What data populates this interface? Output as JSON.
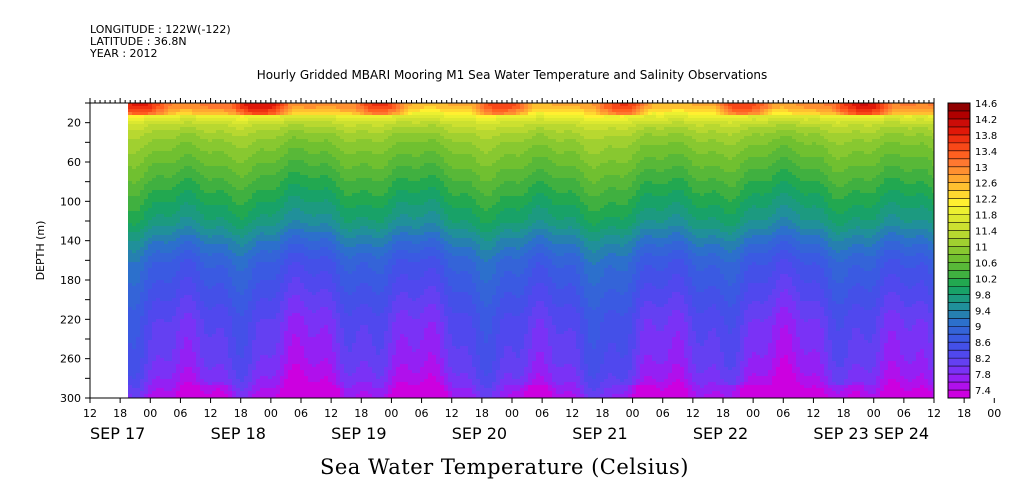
{
  "header": {
    "longitude": "LONGITUDE : 122W(-122)",
    "latitude": "LATITUDE : 36.8N",
    "year": "YEAR : 2012"
  },
  "chart_data": {
    "type": "heatmap",
    "title": "Hourly Gridded MBARI Mooring M1 Sea Water Temperature and Salinity Observations",
    "xlabel": "",
    "ylabel": "DEPTH (m)",
    "colorbar_label": "Sea Water Temperature (Celsius)",
    "x_range": [
      "SEP 17 12:00",
      "SEP 24 12:00"
    ],
    "data_start": "SEP 17 18:00",
    "x_hour_ticks": [
      "12",
      "18",
      "00",
      "06",
      "12",
      "18",
      "00",
      "06",
      "12",
      "18",
      "00",
      "06",
      "12",
      "18",
      "00",
      "06",
      "12",
      "18",
      "00",
      "06",
      "12",
      "18",
      "00",
      "06",
      "12",
      "18",
      "00",
      "06",
      "12",
      "18",
      "00",
      "06",
      "12",
      "18",
      "00",
      "06"
    ],
    "x_day_labels": [
      {
        "label": "SEP 17",
        "at": "SEP 17 12:00"
      },
      {
        "label": "SEP 18",
        "at": "SEP 18 12:00"
      },
      {
        "label": "SEP 19",
        "at": "SEP 19 12:00"
      },
      {
        "label": "SEP 20",
        "at": "SEP 20 12:00"
      },
      {
        "label": "SEP 21",
        "at": "SEP 21 12:00"
      },
      {
        "label": "SEP 22",
        "at": "SEP 22 12:00"
      },
      {
        "label": "SEP 23",
        "at": "SEP 23 12:00"
      },
      {
        "label": "SEP 24",
        "at": "SEP 24 00:00"
      }
    ],
    "y_range": [
      300,
      0
    ],
    "y_ticks": [
      20,
      60,
      100,
      140,
      180,
      220,
      260,
      300
    ],
    "colorbar": {
      "levels": [
        7.4,
        7.6,
        7.8,
        8,
        8.2,
        8.4,
        8.6,
        8.8,
        9,
        9.2,
        9.4,
        9.6,
        9.8,
        10,
        10.2,
        10.4,
        10.6,
        10.8,
        11,
        11.2,
        11.4,
        11.6,
        11.8,
        12,
        12.2,
        12.4,
        12.6,
        12.8,
        13,
        13.2,
        13.4,
        13.6,
        13.8,
        14,
        14.2,
        14.4,
        14.6,
        14.8
      ],
      "tick_labels": [
        "7.4",
        "7.8",
        "8.2",
        "8.6",
        "9",
        "9.4",
        "9.8",
        "10.2",
        "10.6",
        "11",
        "11.4",
        "11.8",
        "12.2",
        "12.6",
        "13",
        "13.4",
        "13.8",
        "14.2",
        "14.6"
      ],
      "colors": [
        "#cc00e0",
        "#b010ec",
        "#9420f4",
        "#7a32f6",
        "#6440f2",
        "#5048ee",
        "#4450e8",
        "#3a5ae2",
        "#3464d8",
        "#2c70cc",
        "#2680b0",
        "#20909a",
        "#1c9a80",
        "#18a268",
        "#22a850",
        "#40b040",
        "#58b838",
        "#70c030",
        "#88c830",
        "#a0d030",
        "#b8d830",
        "#cce030",
        "#dce830",
        "#ecf030",
        "#fff030",
        "#ffd830",
        "#ffc030",
        "#ffa830",
        "#ff9030",
        "#ff7830",
        "#ff6020",
        "#f84818",
        "#ee3010",
        "#e01808",
        "#cc0c08",
        "#b00000",
        "#900000"
      ]
    },
    "depth_profile": [
      {
        "depth": 2,
        "temp": 12.8
      },
      {
        "depth": 6,
        "temp": 12.5
      },
      {
        "depth": 10,
        "temp": 12.2
      },
      {
        "depth": 15,
        "temp": 11.9
      },
      {
        "depth": 20,
        "temp": 11.6
      },
      {
        "depth": 30,
        "temp": 11.3
      },
      {
        "depth": 40,
        "temp": 11.1
      },
      {
        "depth": 60,
        "temp": 10.8
      },
      {
        "depth": 80,
        "temp": 10.5
      },
      {
        "depth": 100,
        "temp": 10.2
      },
      {
        "depth": 120,
        "temp": 9.9
      },
      {
        "depth": 140,
        "temp": 9.4
      },
      {
        "depth": 160,
        "temp": 9.0
      },
      {
        "depth": 180,
        "temp": 8.8
      },
      {
        "depth": 200,
        "temp": 8.6
      },
      {
        "depth": 220,
        "temp": 8.4
      },
      {
        "depth": 240,
        "temp": 8.3
      },
      {
        "depth": 260,
        "temp": 8.2
      },
      {
        "depth": 280,
        "temp": 8.0
      },
      {
        "depth": 300,
        "temp": 7.6
      }
    ]
  }
}
